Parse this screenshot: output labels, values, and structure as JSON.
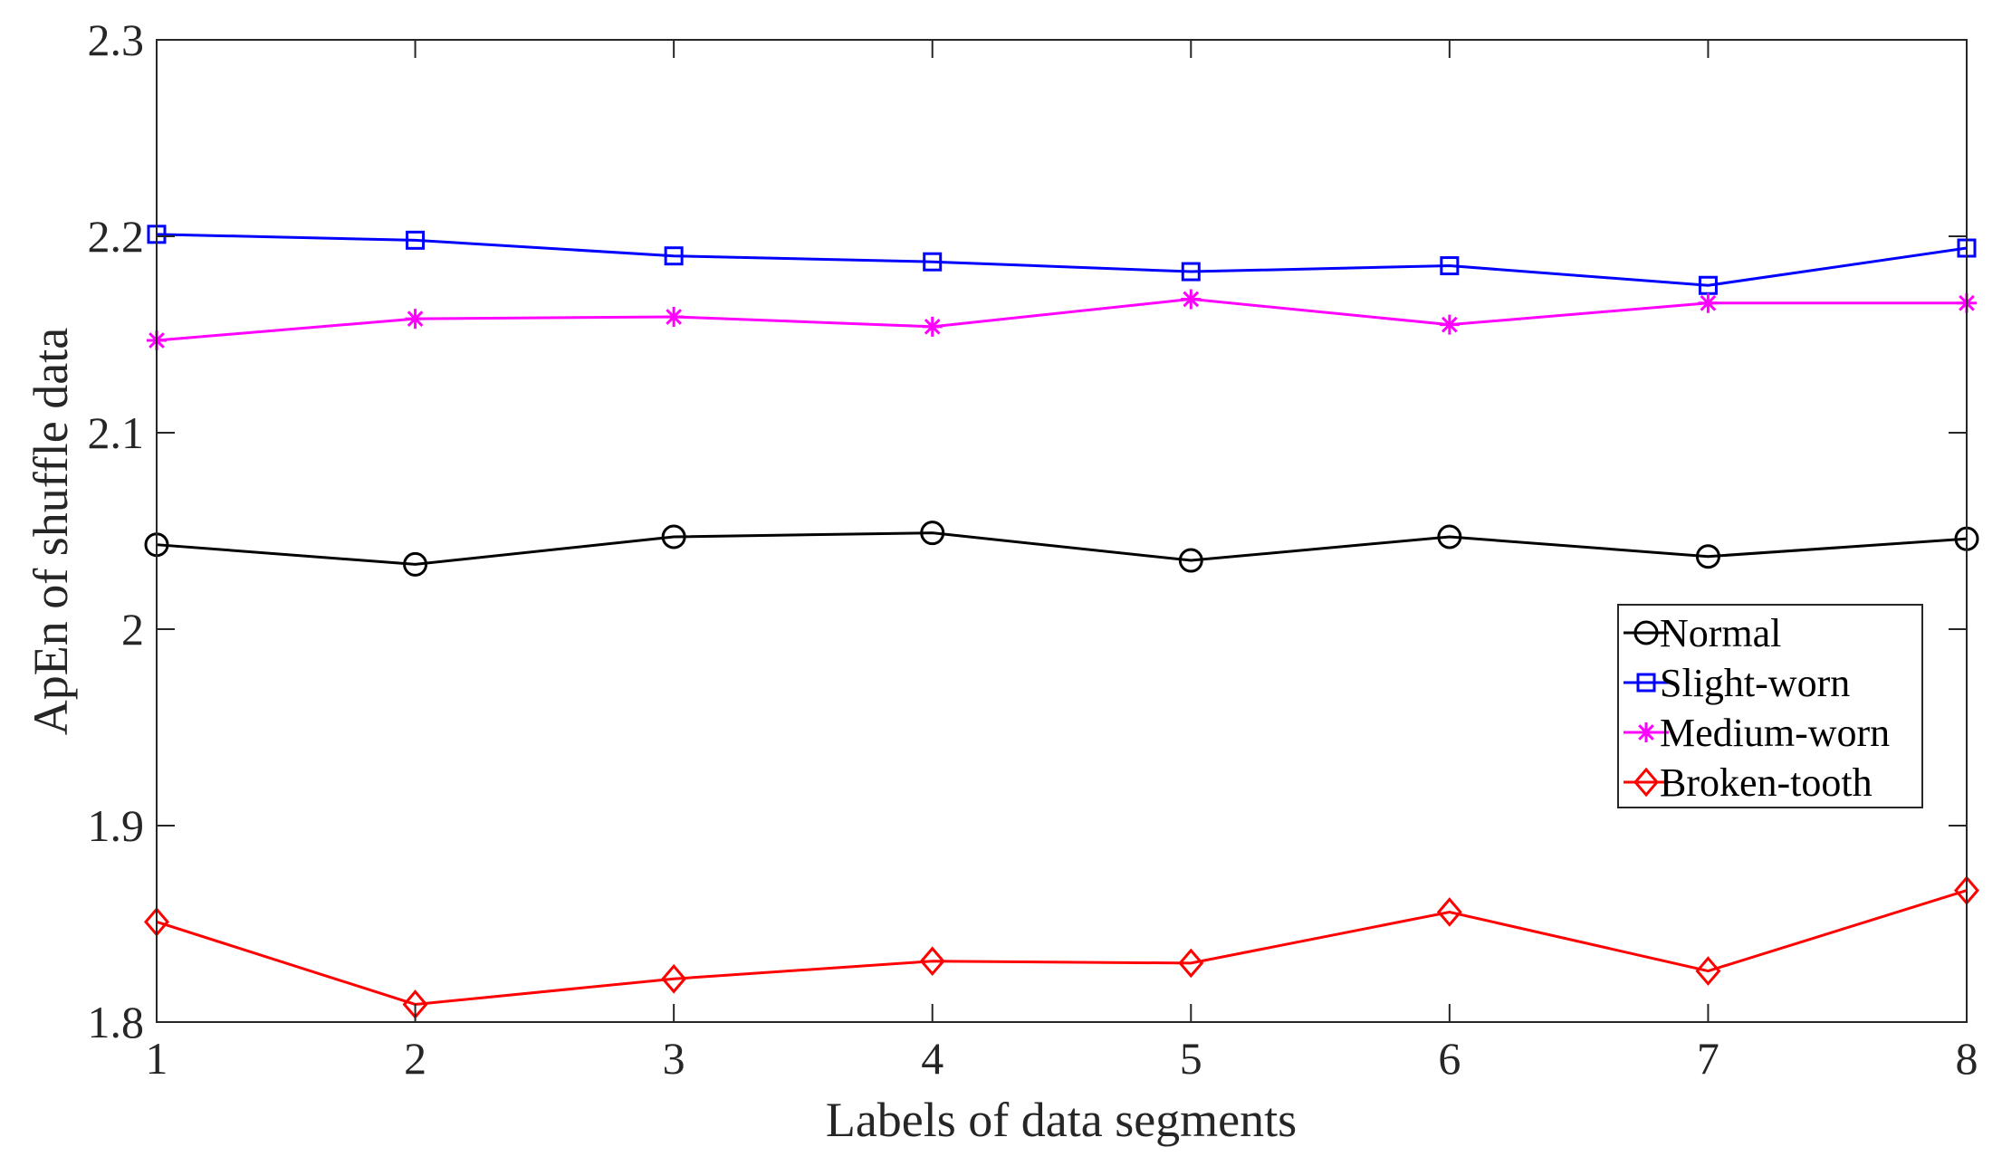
{
  "chart_data": {
    "type": "line",
    "title": "",
    "xlabel": "Labels of data segments",
    "ylabel": "ApEn of shuffle data",
    "xlim": [
      1,
      8
    ],
    "ylim": [
      1.8,
      2.3
    ],
    "x": [
      1,
      2,
      3,
      4,
      5,
      6,
      7,
      8
    ],
    "xticks": [
      "1",
      "2",
      "3",
      "4",
      "5",
      "6",
      "7",
      "8"
    ],
    "yticks": [
      "1.8",
      "1.9",
      "2",
      "2.1",
      "2.2",
      "2.3"
    ],
    "ytick_values": [
      1.8,
      1.9,
      2.0,
      2.1,
      2.2,
      2.3
    ],
    "grid": false,
    "legend_position": "middle-right",
    "series": [
      {
        "name": "Normal",
        "color": "#000000",
        "marker": "circle",
        "values": [
          2.043,
          2.033,
          2.047,
          2.049,
          2.035,
          2.047,
          2.037,
          2.046
        ]
      },
      {
        "name": "Slight-worn",
        "color": "#0000ff",
        "marker": "square",
        "values": [
          2.201,
          2.198,
          2.19,
          2.187,
          2.182,
          2.185,
          2.175,
          2.194
        ]
      },
      {
        "name": "Medium-worn",
        "color": "#ff00ff",
        "marker": "asterisk",
        "values": [
          2.147,
          2.158,
          2.159,
          2.154,
          2.168,
          2.155,
          2.166,
          2.166
        ]
      },
      {
        "name": "Broken-tooth",
        "color": "#ff0000",
        "marker": "diamond",
        "values": [
          1.851,
          1.809,
          1.822,
          1.831,
          1.83,
          1.856,
          1.826,
          1.867
        ]
      }
    ]
  }
}
